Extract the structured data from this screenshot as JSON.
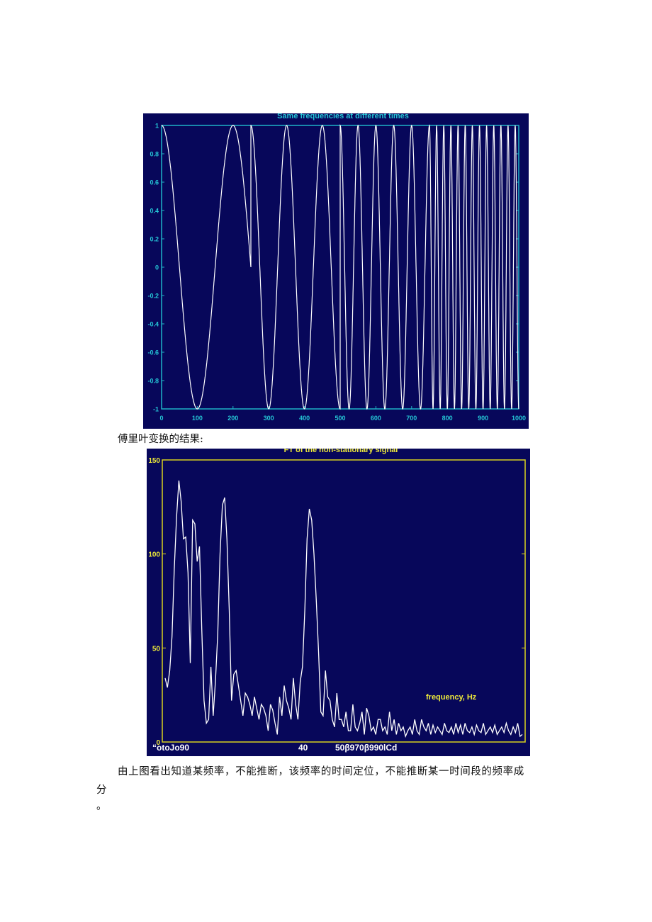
{
  "figure1": {
    "title": "Same frequencies at different times",
    "colors": {
      "background": "#07075a",
      "axis": "#1fb4c8",
      "label": "#25c6d6",
      "line": "#ffffff"
    },
    "chart_data": {
      "type": "line",
      "title": "Same frequencies at different times",
      "xlim": [
        0,
        1000
      ],
      "ylim": [
        -1,
        1
      ],
      "xticks": [
        "0",
        "100",
        "200",
        "300",
        "400",
        "500",
        "600",
        "700",
        "800",
        "900",
        "1000"
      ],
      "yticks": [
        "1",
        "0.8",
        "0.6",
        "0.4",
        "0.2",
        "0",
        "-0.2",
        "-0.4",
        "-0.6",
        "-0.8",
        "-1"
      ],
      "series": [
        {
          "segments": [
            {
              "x_start": 0,
              "x_end": 250,
              "period": 200
            },
            {
              "x_start": 250,
              "x_end": 500,
              "period": 100
            },
            {
              "x_start": 500,
              "x_end": 750,
              "period": 50
            },
            {
              "x_start": 750,
              "x_end": 1000,
              "period": 20
            }
          ]
        }
      ]
    }
  },
  "caption1": "傅里叶变换的结果:",
  "figure2": {
    "title": "FT of the non-stationary signal",
    "annotation": "frequency, Hz",
    "xtick_text": [
      "“otoJo90",
      "40",
      "50β970β990lCd"
    ],
    "colors": {
      "background": "#07075a",
      "axis": "#d9d21e",
      "label": "#eeea3a",
      "line": "#ffffff"
    },
    "chart_data": {
      "type": "line",
      "title": "FT of the non-stationary signal",
      "ylim": [
        0,
        150
      ],
      "yticks": [
        "150",
        "100",
        "50",
        "0"
      ],
      "x": [
        0,
        1,
        2,
        3,
        4,
        5,
        6,
        7,
        8,
        9,
        10,
        11,
        12,
        13,
        14,
        15,
        16,
        17,
        18,
        19,
        20,
        21,
        22,
        23,
        24,
        25,
        26,
        27,
        28,
        29,
        30,
        31,
        32,
        33,
        34,
        35,
        36,
        37,
        38,
        39,
        40,
        41,
        42,
        43,
        44,
        45,
        46,
        47,
        48,
        49,
        50,
        51,
        52,
        53,
        54,
        55,
        56,
        57,
        58,
        59,
        60,
        61,
        62,
        63,
        64,
        65,
        66,
        67,
        68,
        69,
        70,
        71,
        72,
        73,
        74,
        75,
        76,
        77,
        78,
        79,
        80,
        81,
        82,
        83,
        84,
        85,
        86,
        87,
        88,
        89,
        90,
        91,
        92,
        93,
        94,
        95,
        96,
        97,
        98,
        99,
        100,
        101,
        102,
        103,
        104,
        105,
        106,
        107,
        108,
        109,
        110,
        111,
        112,
        113,
        114,
        115,
        116,
        117,
        118,
        119,
        120,
        121,
        122,
        123,
        124,
        125,
        126,
        127,
        128,
        129,
        130,
        131,
        132,
        133,
        134,
        135,
        136,
        137,
        138,
        139,
        140,
        141,
        142,
        143,
        144,
        145,
        146,
        147,
        148,
        149,
        150,
        151,
        152,
        153,
        154,
        155,
        156
      ],
      "series": [
        {
          "values": [
            34,
            29,
            38,
            56,
            92,
            120,
            139,
            128,
            108,
            109,
            90,
            42,
            118,
            116,
            96,
            104,
            60,
            22,
            10,
            12,
            40,
            14,
            33,
            58,
            100,
            126,
            130,
            108,
            70,
            22,
            36,
            38,
            30,
            22,
            14,
            26,
            24,
            20,
            14,
            24,
            18,
            12,
            20,
            18,
            14,
            6,
            20,
            17,
            10,
            4,
            24,
            14,
            30,
            22,
            18,
            12,
            34,
            20,
            12,
            32,
            40,
            70,
            108,
            124,
            118,
            100,
            76,
            48,
            16,
            14,
            38,
            24,
            22,
            12,
            8,
            26,
            12,
            12,
            8,
            16,
            6,
            6,
            20,
            8,
            6,
            10,
            16,
            4,
            18,
            14,
            6,
            8,
            4,
            12,
            12,
            6,
            8,
            4,
            16,
            6,
            12,
            4,
            10,
            6,
            8,
            3,
            6,
            8,
            4,
            12,
            6,
            4,
            12,
            8,
            6,
            10,
            4,
            9,
            5,
            8,
            6,
            4,
            10,
            6,
            5,
            8,
            4,
            10,
            5,
            9,
            4,
            10,
            6,
            5,
            8,
            4,
            9,
            6,
            5,
            10,
            4,
            6,
            8,
            5,
            9,
            4,
            6,
            8,
            5,
            10,
            6,
            4,
            8,
            5,
            10,
            3,
            4
          ]
        }
      ]
    }
  },
  "body": {
    "line1": "由上图看出知道某频率，不能推断，该频率的时间定位，不能推断某一时间段的频率成",
    "line2": "分",
    "line3": "。"
  }
}
